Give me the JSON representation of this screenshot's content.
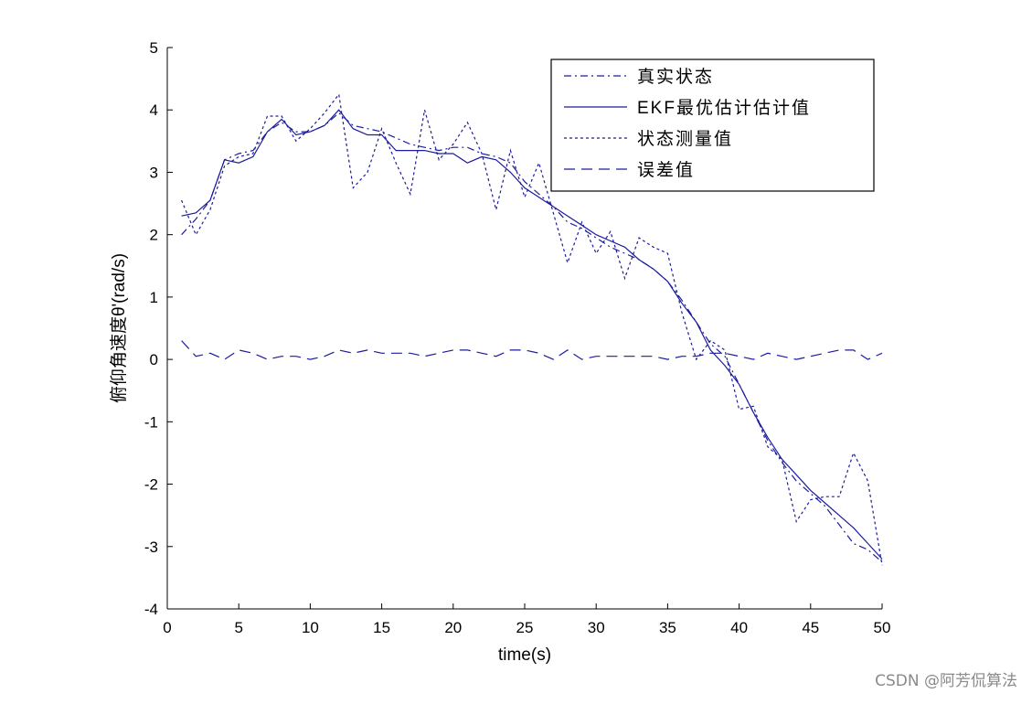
{
  "watermark": "CSDN @阿芳侃算法",
  "chart_data": {
    "type": "line",
    "title": "",
    "xlabel": "time(s)",
    "ylabel": "俯仰角速度θ'(rad/s)",
    "xlim": [
      0,
      50
    ],
    "ylim": [
      -4,
      5
    ],
    "xticks": [
      0,
      5,
      10,
      15,
      20,
      25,
      30,
      35,
      40,
      45,
      50
    ],
    "yticks": [
      -4,
      -3,
      -2,
      -1,
      0,
      1,
      2,
      3,
      4,
      5
    ],
    "grid": false,
    "legend_position": "top-right",
    "color": "#1c1c9c",
    "x": [
      1,
      2,
      3,
      4,
      5,
      6,
      7,
      8,
      9,
      10,
      11,
      12,
      13,
      14,
      15,
      16,
      17,
      18,
      19,
      20,
      21,
      22,
      23,
      24,
      25,
      26,
      27,
      28,
      29,
      30,
      31,
      32,
      33,
      34,
      35,
      36,
      37,
      38,
      39,
      40,
      41,
      42,
      43,
      44,
      45,
      46,
      47,
      48,
      49,
      50
    ],
    "series": [
      {
        "name": "真实状态",
        "dash": "dashdot",
        "values": [
          2.0,
          2.25,
          2.55,
          3.2,
          3.3,
          3.35,
          3.65,
          3.8,
          3.65,
          3.65,
          3.75,
          3.95,
          3.75,
          3.7,
          3.65,
          3.55,
          3.45,
          3.4,
          3.35,
          3.4,
          3.4,
          3.3,
          3.25,
          3.15,
          2.85,
          2.65,
          2.45,
          2.2,
          2.1,
          1.95,
          1.8,
          1.7,
          1.6,
          1.45,
          1.25,
          0.95,
          0.6,
          0.25,
          0.05,
          -0.4,
          -0.85,
          -1.3,
          -1.65,
          -1.95,
          -2.15,
          -2.35,
          -2.65,
          -2.95,
          -3.05,
          -3.25
        ]
      },
      {
        "name": "EKF最优估计估计值",
        "dash": "solid",
        "values": [
          2.3,
          2.35,
          2.55,
          3.2,
          3.15,
          3.25,
          3.65,
          3.85,
          3.6,
          3.65,
          3.75,
          4.0,
          3.7,
          3.6,
          3.6,
          3.35,
          3.35,
          3.35,
          3.3,
          3.3,
          3.15,
          3.25,
          3.2,
          3.0,
          2.75,
          2.6,
          2.45,
          2.3,
          2.15,
          2.0,
          1.9,
          1.8,
          1.6,
          1.45,
          1.25,
          0.9,
          0.6,
          0.15,
          -0.1,
          -0.4,
          -0.85,
          -1.25,
          -1.6,
          -1.85,
          -2.1,
          -2.3,
          -2.5,
          -2.7,
          -2.95,
          -3.2
        ]
      },
      {
        "name": "状态测量值",
        "dash": "dotted",
        "values": [
          2.55,
          2.0,
          2.4,
          3.1,
          3.25,
          3.3,
          3.9,
          3.9,
          3.5,
          3.7,
          3.95,
          4.25,
          2.75,
          3.0,
          3.7,
          3.15,
          2.65,
          4.0,
          3.2,
          3.45,
          3.8,
          3.3,
          2.4,
          3.35,
          2.6,
          3.15,
          2.35,
          1.55,
          2.2,
          1.7,
          2.05,
          1.3,
          1.95,
          1.8,
          1.7,
          0.75,
          0.0,
          0.3,
          0.15,
          -0.8,
          -0.75,
          -1.4,
          -1.6,
          -2.6,
          -2.25,
          -2.2,
          -2.2,
          -1.5,
          -1.95,
          -3.3
        ]
      },
      {
        "name": "误差值",
        "dash": "dashed",
        "values": [
          0.3,
          0.05,
          0.1,
          0.0,
          0.15,
          0.1,
          0.0,
          0.05,
          0.05,
          0.0,
          0.05,
          0.15,
          0.1,
          0.15,
          0.1,
          0.1,
          0.1,
          0.05,
          0.1,
          0.15,
          0.15,
          0.1,
          0.05,
          0.15,
          0.15,
          0.1,
          0.0,
          0.15,
          0.0,
          0.05,
          0.05,
          0.05,
          0.05,
          0.05,
          0.0,
          0.05,
          0.05,
          0.1,
          0.1,
          0.05,
          0.0,
          0.1,
          0.05,
          0.0,
          0.05,
          0.1,
          0.15,
          0.15,
          0.0,
          0.1
        ]
      }
    ]
  }
}
